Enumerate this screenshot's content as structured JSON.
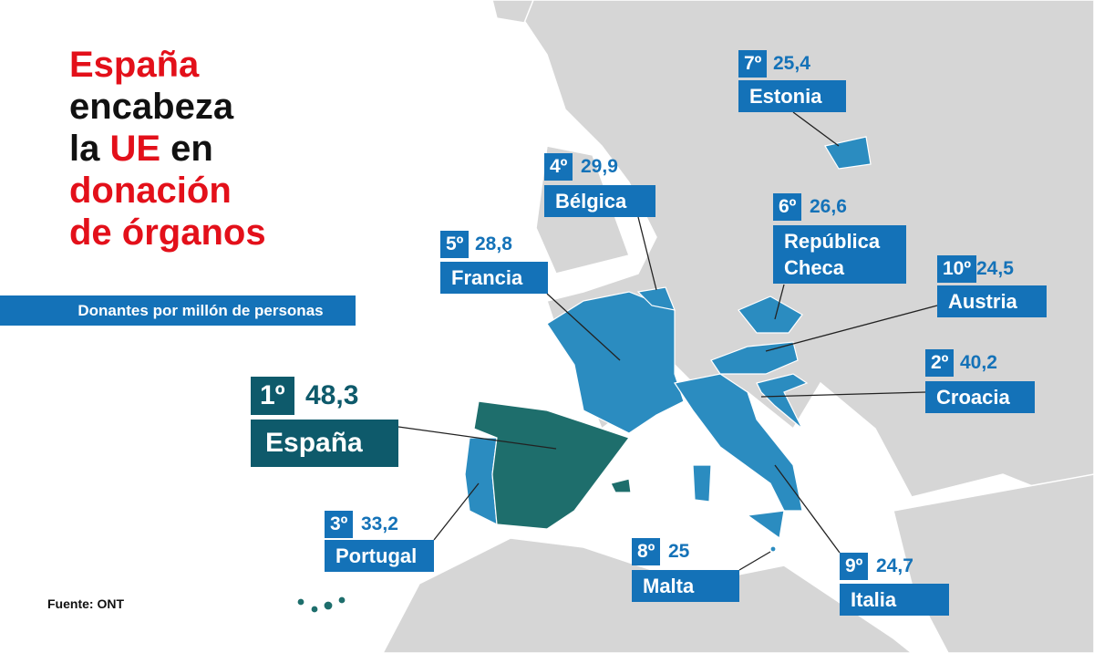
{
  "title": {
    "lines": [
      [
        {
          "text": "España",
          "highlight": true
        }
      ],
      [
        {
          "text": "encabeza",
          "highlight": false
        }
      ],
      [
        {
          "text": "la ",
          "highlight": false
        },
        {
          "text": "UE",
          "highlight": true
        },
        {
          "text": " en",
          "highlight": false
        }
      ],
      [
        {
          "text": "donación",
          "highlight": true
        }
      ],
      [
        {
          "text": "de órganos",
          "highlight": true
        }
      ]
    ]
  },
  "subtitle": "Donantes por millón de personas",
  "source": "Fuente: ONT",
  "countries": [
    {
      "rank": "1º",
      "value": "48,3",
      "name": "España"
    },
    {
      "rank": "2º",
      "value": "40,2",
      "name": "Croacia"
    },
    {
      "rank": "3º",
      "value": "33,2",
      "name": "Portugal"
    },
    {
      "rank": "4º",
      "value": "29,9",
      "name": "Bélgica"
    },
    {
      "rank": "5º",
      "value": "28,8",
      "name": "Francia"
    },
    {
      "rank": "6º",
      "value": "26,6",
      "name": "República Checa"
    },
    {
      "rank": "7º",
      "value": "25,4",
      "name": "Estonia"
    },
    {
      "rank": "8º",
      "value": "25",
      "name": "Malta"
    },
    {
      "rank": "9º",
      "value": "24,7",
      "name": "Italia"
    },
    {
      "rank": "10º",
      "value": "24,5",
      "name": "Austria"
    }
  ]
}
